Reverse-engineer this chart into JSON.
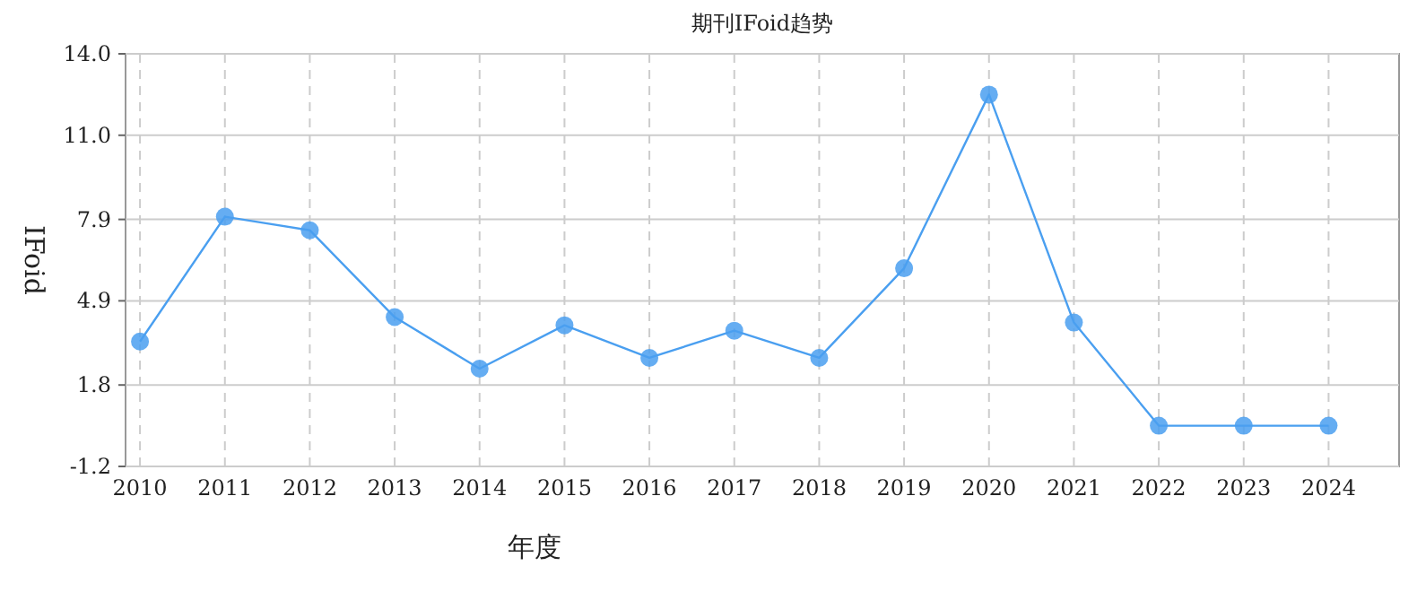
{
  "chart_data": {
    "type": "line",
    "title": "期刊IFoid趋势",
    "xlabel": "年度",
    "ylabel": "IFoid",
    "categories": [
      "2010",
      "2011",
      "2012",
      "2013",
      "2014",
      "2015",
      "2016",
      "2017",
      "2018",
      "2019",
      "2020",
      "2021",
      "2022",
      "2023",
      "2024"
    ],
    "series": [
      {
        "color": "#4a9ff0",
        "values": [
          3.4,
          8.0,
          7.5,
          4.3,
          2.4,
          4.0,
          2.8,
          3.8,
          2.8,
          6.1,
          12.5,
          4.1,
          0.3,
          0.3,
          0.3
        ]
      }
    ],
    "ylim": [
      -1.2,
      14.0
    ],
    "yticks": [
      {
        "value": -1.2,
        "label": "-1.2"
      },
      {
        "value": 1.8,
        "label": "1.8"
      },
      {
        "value": 4.9,
        "label": "4.9"
      },
      {
        "value": 7.9,
        "label": "7.9"
      },
      {
        "value": 11.0,
        "label": "11.0"
      },
      {
        "value": 14.0,
        "label": "14.0"
      }
    ],
    "grid": true,
    "marker": "circle",
    "line_style": "solid"
  }
}
